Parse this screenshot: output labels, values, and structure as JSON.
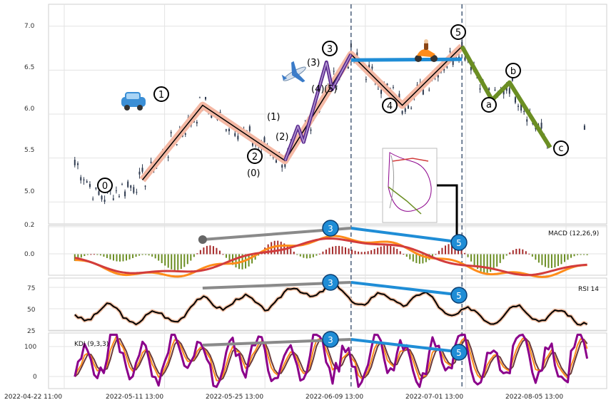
{
  "chart_data": {
    "type": "line",
    "subtype": "candlestick-with-indicators",
    "x_ticks": [
      "2022-04-22 11:00",
      "2022-05-11 13:00",
      "2022-05-25 13:00",
      "2022-06-09 13:00",
      "2022-07-01 13:00",
      "2022-08-05 13:00"
    ],
    "grid": true,
    "panels": {
      "price": {
        "ylim": [
          4.75,
          7.25
        ],
        "y_ticks": [
          "5.0",
          "5.5",
          "6.0",
          "6.5",
          "7.0"
        ]
      },
      "macd": {
        "label": "MACD (12,26,9)",
        "y_ticks": [
          "0.2",
          "0.0"
        ],
        "ylim": [
          -0.16,
          0.22
        ]
      },
      "rsi": {
        "label": "RSI 14",
        "y_ticks": [
          "75",
          "50",
          "25"
        ],
        "ylim": [
          20,
          85
        ]
      },
      "kdj": {
        "label": "KDJ (9,3,3)",
        "y_ticks": [
          "100",
          "0"
        ],
        "ylim": [
          -30,
          130
        ]
      }
    },
    "wave_points": [
      {
        "label": "0",
        "t": 0.148,
        "price": 5.25
      },
      {
        "label": "1",
        "t": 0.262,
        "price": 6.1
      },
      {
        "label": "2",
        "t": 0.418,
        "price": 5.47
      },
      {
        "label": "3",
        "t": 0.543,
        "price": 6.68
      },
      {
        "label": "4",
        "t": 0.64,
        "price": 6.1
      },
      {
        "label": "5",
        "t": 0.753,
        "price": 6.77
      },
      {
        "label": "a",
        "t": 0.81,
        "price": 6.16
      },
      {
        "label": "b",
        "t": 0.843,
        "price": 6.36
      },
      {
        "label": "c",
        "t": 0.92,
        "price": 5.62
      }
    ],
    "sub_wave_labels": [
      "(0)",
      "(1)",
      "(2)",
      "(3)",
      "(4)",
      "(5)"
    ],
    "divergence_labels": [
      "3",
      "5"
    ],
    "colors": {
      "impulse": "#f4b8a4",
      "sub_impulse": "#5b2c8e",
      "correction": "#6b8e23",
      "divergence": "#1f8dd6",
      "candle": "#2e3a4f",
      "macd_fast": "#ff8c1a",
      "macd_slow": "#d23c3c",
      "hist_pos": "#a52a2a",
      "hist_neg": "#6b8e23",
      "kdj_k": "#ff8c1a",
      "kdj_d": "#6b3a3a",
      "kdj_j": "#8b008b"
    }
  }
}
